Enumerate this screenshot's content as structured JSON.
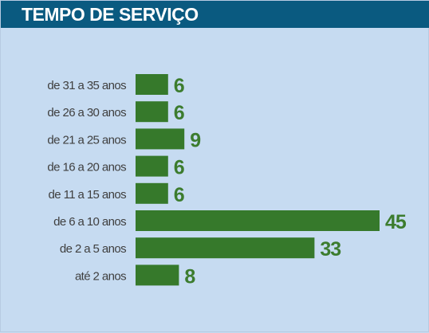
{
  "header": {
    "title": "TEMPO DE SERVIÇO"
  },
  "colors": {
    "header_bg": "#0a5a80",
    "panel_bg": "#c6dbf1",
    "bar": "#36792b",
    "value_text": "#3c7c2e",
    "label_text": "#3f3f3f"
  },
  "chart_data": {
    "type": "bar",
    "orientation": "horizontal",
    "title": "TEMPO DE SERVIÇO",
    "categories": [
      "de 31 a 35 anos",
      "de 26 a 30 anos",
      "de 21 a 25 anos",
      "de 16 a 20 anos",
      "de 11 a 15 anos",
      "de 6 a 10 anos",
      "de 2 a 5 anos",
      "até 2 anos"
    ],
    "values": [
      6,
      6,
      9,
      6,
      6,
      45,
      33,
      8
    ],
    "data_labels": true,
    "grid": false,
    "legend": "none"
  }
}
